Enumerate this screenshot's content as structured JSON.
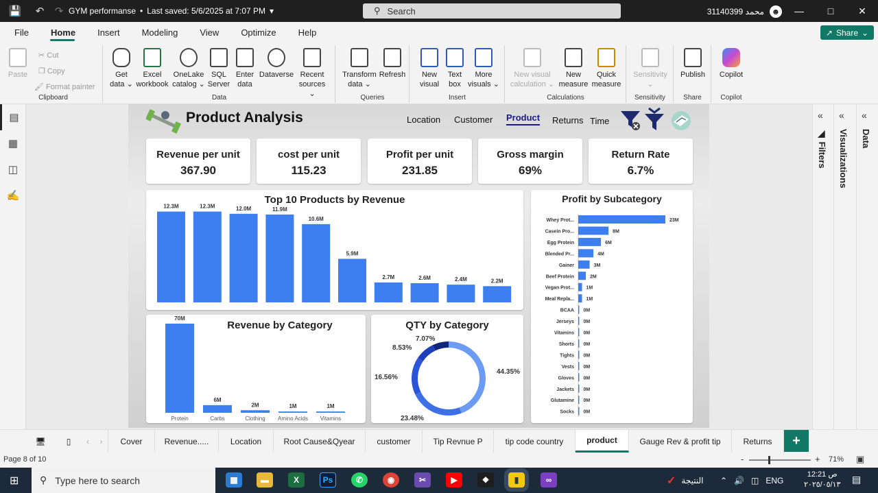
{
  "titlebar": {
    "title": "GYM performanse",
    "saved": "Last saved: 5/6/2025 at 7:07 PM",
    "search_placeholder": "Search",
    "user": "31140399 محمد"
  },
  "menu": [
    "File",
    "Home",
    "Insert",
    "Modeling",
    "View",
    "Optimize",
    "Help"
  ],
  "share_label": "Share",
  "ribbon": {
    "clipboard": {
      "paste": "Paste",
      "cut": "Cut",
      "copy": "Copy",
      "format_painter": "Format painter",
      "group": "Clipboard"
    },
    "data": {
      "get_data": [
        "Get",
        "data"
      ],
      "excel": [
        "Excel",
        "workbook"
      ],
      "onelake": [
        "OneLake",
        "catalog"
      ],
      "sql": [
        "SQL",
        "Server"
      ],
      "enter": [
        "Enter",
        "data"
      ],
      "dataverse": "Dataverse",
      "recent": [
        "Recent",
        "sources"
      ],
      "group": "Data"
    },
    "queries": {
      "transform": [
        "Transform",
        "data"
      ],
      "refresh": "Refresh",
      "group": "Queries"
    },
    "insert": {
      "new_visual": [
        "New",
        "visual"
      ],
      "text_box": [
        "Text",
        "box"
      ],
      "more_visuals": [
        "More",
        "visuals"
      ],
      "group": "Insert"
    },
    "calculations": {
      "new_visual_calc": [
        "New visual",
        "calculation"
      ],
      "new_measure": [
        "New",
        "measure"
      ],
      "quick_measure": [
        "Quick",
        "measure"
      ],
      "group": "Calculations"
    },
    "sensitivity": {
      "label": "Sensitivity",
      "group": "Sensitivity"
    },
    "share": {
      "publish": "Publish",
      "group": "Share"
    },
    "copilot": {
      "label": "Copilot",
      "group": "Copilot"
    }
  },
  "report": {
    "title": "Product Analysis",
    "nav": [
      "Location",
      "Customer",
      "Product",
      "Returns",
      "Time"
    ],
    "kpis": [
      {
        "label": "Revenue per unit",
        "value": "367.90"
      },
      {
        "label": "cost per unit",
        "value": "115.23"
      },
      {
        "label": "Profit per unit",
        "value": "231.85"
      },
      {
        "label": "Gross margin",
        "value": "69%"
      },
      {
        "label": "Return Rate",
        "value": "6.7%"
      }
    ]
  },
  "chart_data": [
    {
      "type": "bar",
      "title": "Top 10 Products by Revenue",
      "values": [
        12.3,
        12.3,
        12.0,
        11.9,
        10.6,
        5.9,
        2.7,
        2.6,
        2.4,
        2.2
      ],
      "labels": [
        "12.3M",
        "12.3M",
        "12.0M",
        "11.9M",
        "10.6M",
        "5.9M",
        "2.7M",
        "2.6M",
        "2.4M",
        "2.2M"
      ],
      "ylim": [
        0,
        13
      ],
      "color": "#3d7ff0"
    },
    {
      "type": "bar",
      "title": "Revenue by Category",
      "categories": [
        "Protein",
        "Carbs",
        "Clothing",
        "Amino Acids",
        "Vitamins"
      ],
      "values": [
        70,
        6,
        2,
        1,
        1
      ],
      "labels": [
        "70M",
        "6M",
        "2M",
        "1M",
        "1M"
      ],
      "ylim": [
        0,
        70
      ],
      "color": "#3d7ff0"
    },
    {
      "type": "pie",
      "title": "QTY by Category",
      "values": [
        44.35,
        23.48,
        16.56,
        8.53,
        7.07
      ],
      "labels": [
        "44.35%",
        "23.48%",
        "16.56%",
        "8.53%",
        "7.07%"
      ],
      "colors": [
        "#6b9bf2",
        "#3d6fe6",
        "#2b55d6",
        "#1e3fb8",
        "#10267a"
      ]
    },
    {
      "type": "bar",
      "title": "Profit by Subcategory",
      "categories": [
        "Whey Prot...",
        "Casein Pro...",
        "Egg Protein",
        "Blended Pr...",
        "Gainer",
        "Beef Protein",
        "Vegan Prot...",
        "Meal Repla...",
        "BCAA",
        "Jerseys",
        "Vitamins",
        "Shorts",
        "Tights",
        "Vests",
        "Gloves",
        "Jackets",
        "Glutamine",
        "Socks"
      ],
      "values": [
        23,
        8,
        6,
        4,
        3,
        2,
        1,
        1,
        0,
        0,
        0,
        0,
        0,
        0,
        0,
        0,
        0,
        0
      ],
      "labels": [
        "23M",
        "8M",
        "6M",
        "4M",
        "3M",
        "2M",
        "1M",
        "1M",
        "0M",
        "0M",
        "0M",
        "0M",
        "0M",
        "0M",
        "0M",
        "0M",
        "0M",
        "0M"
      ],
      "xlim": [
        0,
        23
      ],
      "color": "#3d7ff0"
    }
  ],
  "panes": {
    "filters": "Filters",
    "visualizations": "Visualizations",
    "data": "Data"
  },
  "tabs": [
    "Cover",
    "Revenue.....",
    "Location",
    "Root Cause&Qyear",
    "customer",
    "Tip Revnue P",
    "tip code country",
    "product",
    "Gauge Rev & profit tip",
    "Returns"
  ],
  "status": {
    "page": "Page 8 of 10",
    "zoom": "71%"
  },
  "taskbar": {
    "search_placeholder": "Type here to search",
    "news": "النتيجة",
    "lang": "ENG",
    "time": "12:21 ص",
    "date": "٢٠٢٥/٠٥/١٣"
  }
}
